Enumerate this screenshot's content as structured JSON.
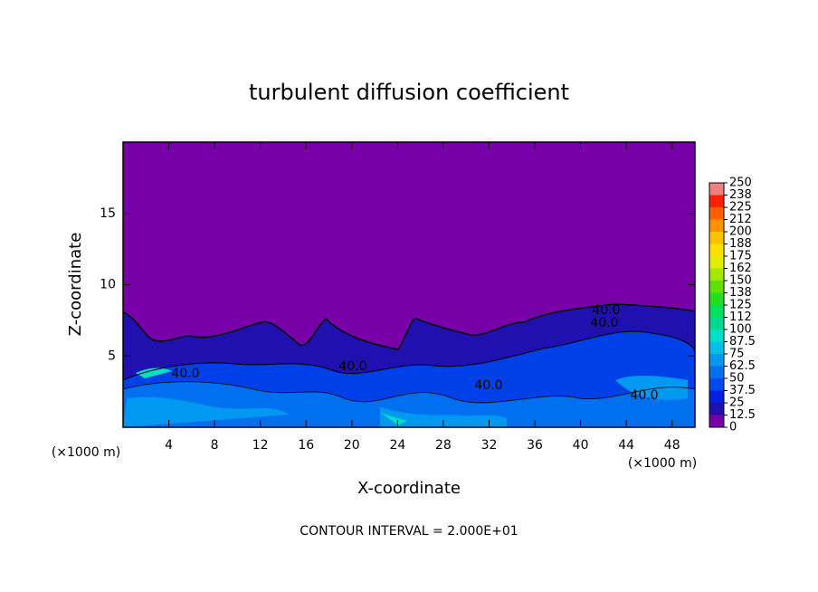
{
  "chart_data": {
    "type": "contour",
    "title": "turbulent diffusion coefficient",
    "x_label": "X-coordinate",
    "y_label": "Z-coordinate",
    "x_unit": "(×1000 m)",
    "footer": "CONTOUR INTERVAL = 2.000E+01",
    "xlim": [
      0,
      50
    ],
    "xticks": [
      4,
      8,
      12,
      16,
      20,
      24,
      28,
      32,
      36,
      40,
      44,
      48
    ],
    "ylim": [
      0,
      20
    ],
    "yticks": [
      5,
      10,
      15
    ],
    "contour_labels": [
      "40.0",
      "40.0",
      "40.0",
      "40.0",
      "40.0",
      "40.0"
    ],
    "colorbar": {
      "levels": [
        0,
        12.5,
        25,
        37.5,
        50,
        62.5,
        75,
        87.5,
        100,
        112,
        125,
        138,
        150,
        162,
        175,
        188,
        200,
        212,
        225,
        238,
        250
      ],
      "colors": [
        "#7800a8",
        "#2010b0",
        "#0020e0",
        "#0048f0",
        "#0070f0",
        "#0098f0",
        "#00c0e8",
        "#00e0c8",
        "#00d890",
        "#00e060",
        "#20e020",
        "#60e000",
        "#a0e800",
        "#e0f000",
        "#ffe000",
        "#ffc000",
        "#ff9000",
        "#ff6000",
        "#ff2000",
        "#f08080"
      ]
    }
  }
}
